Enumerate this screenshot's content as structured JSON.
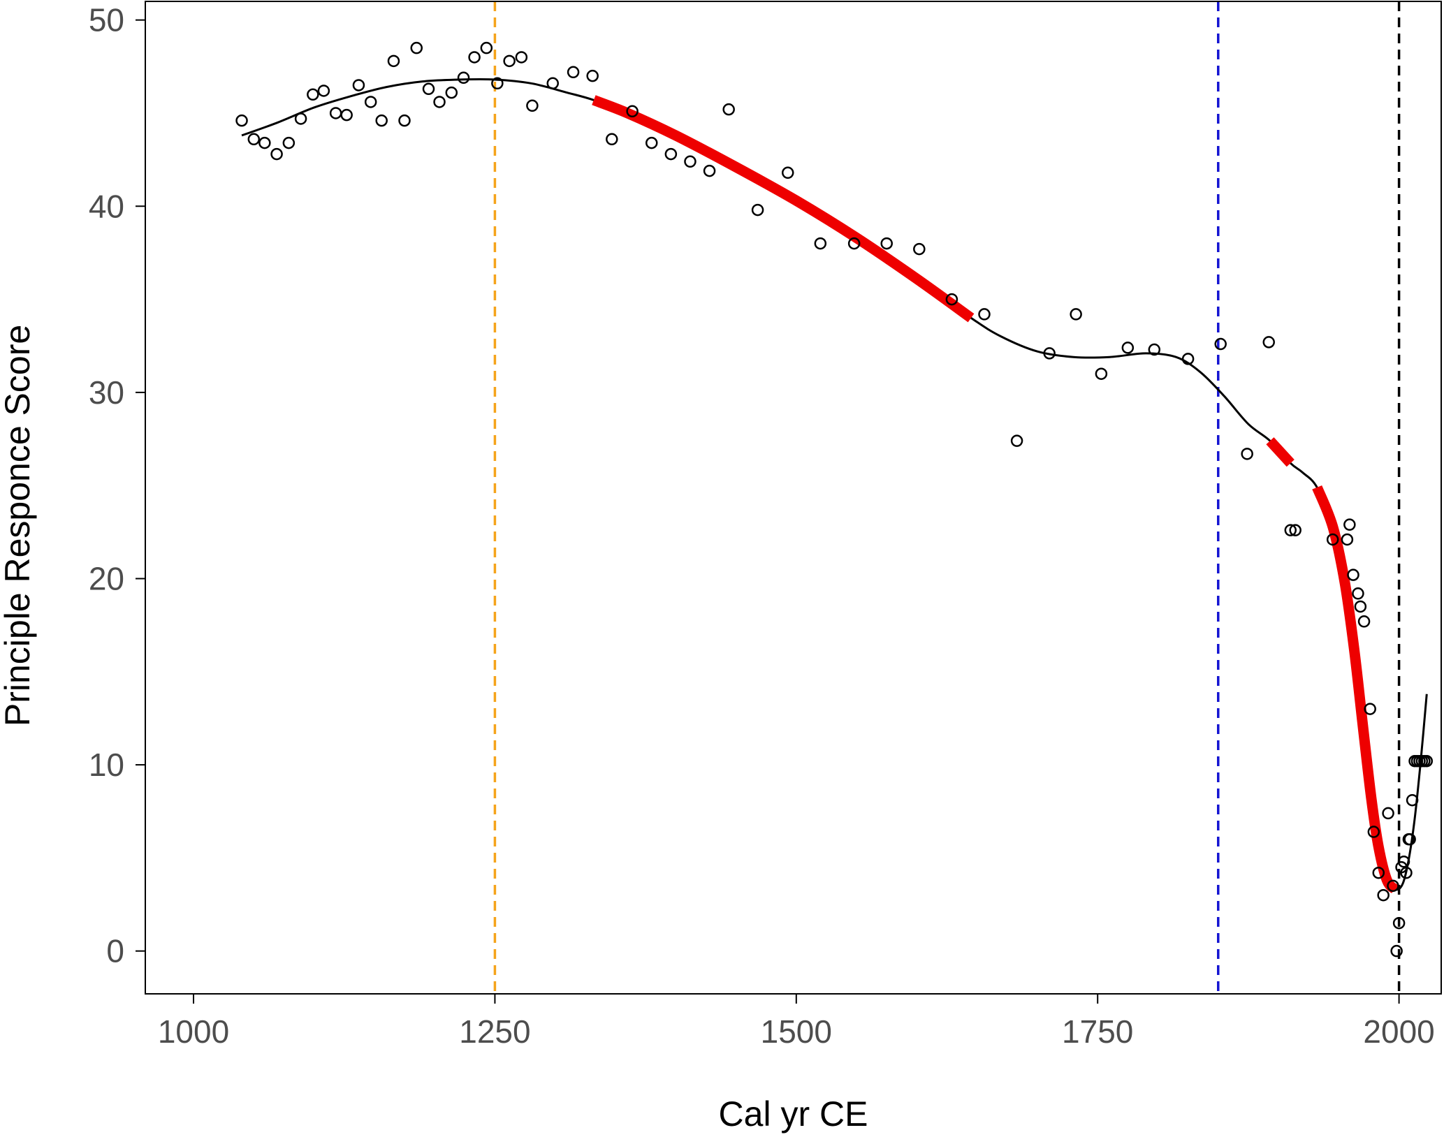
{
  "chart_data": {
    "type": "scatter",
    "title": "",
    "xlabel": "Cal yr CE",
    "ylabel": "Principle Responce Score",
    "xlim": [
      960,
      2035
    ],
    "ylim": [
      -2.3,
      51
    ],
    "x_ticks": [
      1000,
      1250,
      1500,
      1750,
      2000
    ],
    "y_ticks": [
      0,
      10,
      20,
      30,
      40,
      50
    ],
    "grid": false,
    "legend": "none",
    "colors": {
      "points": "#000000",
      "fit": "#000000",
      "significant": "#ee0000",
      "vline_1250": "#f5a41b",
      "vline_1850": "#1414d2",
      "vline_2000": "#000000"
    },
    "vlines": [
      1250,
      1850,
      2000
    ],
    "points": [
      [
        1040,
        44.6
      ],
      [
        1050,
        43.6
      ],
      [
        1059,
        43.4
      ],
      [
        1069,
        42.8
      ],
      [
        1079,
        43.4
      ],
      [
        1089,
        44.7
      ],
      [
        1099,
        46.0
      ],
      [
        1108,
        46.2
      ],
      [
        1118,
        45.0
      ],
      [
        1127,
        44.9
      ],
      [
        1137,
        46.5
      ],
      [
        1147,
        45.6
      ],
      [
        1156,
        44.6
      ],
      [
        1166,
        47.8
      ],
      [
        1175,
        44.6
      ],
      [
        1185,
        48.5
      ],
      [
        1195,
        46.3
      ],
      [
        1204,
        45.6
      ],
      [
        1214,
        46.1
      ],
      [
        1224,
        46.9
      ],
      [
        1233,
        48.0
      ],
      [
        1243,
        48.5
      ],
      [
        1252,
        46.6
      ],
      [
        1262,
        47.8
      ],
      [
        1272,
        48.0
      ],
      [
        1281,
        45.4
      ],
      [
        1298,
        46.6
      ],
      [
        1315,
        47.2
      ],
      [
        1331,
        47.0
      ],
      [
        1347,
        43.6
      ],
      [
        1364,
        45.1
      ],
      [
        1380,
        43.4
      ],
      [
        1396,
        42.8
      ],
      [
        1412,
        42.4
      ],
      [
        1428,
        41.9
      ],
      [
        1444,
        45.2
      ],
      [
        1468,
        39.8
      ],
      [
        1493,
        41.8
      ],
      [
        1520,
        38.0
      ],
      [
        1548,
        38.0
      ],
      [
        1575,
        38.0
      ],
      [
        1602,
        37.7
      ],
      [
        1629,
        35.0
      ],
      [
        1656,
        34.2
      ],
      [
        1683,
        27.4
      ],
      [
        1710,
        32.1
      ],
      [
        1732,
        34.2
      ],
      [
        1753,
        31.0
      ],
      [
        1775,
        32.4
      ],
      [
        1797,
        32.3
      ],
      [
        1825,
        31.8
      ],
      [
        1852,
        32.6
      ],
      [
        1874,
        26.7
      ],
      [
        1892,
        32.7
      ],
      [
        1910,
        22.6
      ],
      [
        1914,
        22.6
      ],
      [
        1945,
        22.1
      ],
      [
        1957,
        22.1
      ],
      [
        1959,
        22.9
      ],
      [
        1962,
        20.2
      ],
      [
        1966,
        19.2
      ],
      [
        1968,
        18.5
      ],
      [
        1971,
        17.7
      ],
      [
        1976,
        13.0
      ],
      [
        1979,
        6.4
      ],
      [
        1983,
        4.2
      ],
      [
        1987,
        3.0
      ],
      [
        1991,
        7.4
      ],
      [
        1995,
        3.5
      ],
      [
        1998,
        0.0
      ],
      [
        2000,
        1.5
      ],
      [
        2002,
        4.5
      ],
      [
        2004,
        4.8
      ],
      [
        2006,
        4.2
      ],
      [
        2008,
        6.0
      ],
      [
        2009,
        6.0
      ],
      [
        2011,
        8.1
      ],
      [
        2013,
        10.2
      ],
      [
        2015,
        10.2
      ],
      [
        2017,
        10.2
      ],
      [
        2019,
        10.2
      ],
      [
        2021,
        10.2
      ],
      [
        2023,
        10.2
      ]
    ],
    "fit_curve": [
      [
        1040,
        43.8
      ],
      [
        1070,
        44.5
      ],
      [
        1100,
        45.3
      ],
      [
        1130,
        45.9
      ],
      [
        1160,
        46.4
      ],
      [
        1190,
        46.7
      ],
      [
        1220,
        46.8
      ],
      [
        1250,
        46.8
      ],
      [
        1280,
        46.6
      ],
      [
        1310,
        46.1
      ],
      [
        1332,
        45.7
      ],
      [
        1360,
        45.0
      ],
      [
        1400,
        43.8
      ],
      [
        1450,
        42.1
      ],
      [
        1500,
        40.3
      ],
      [
        1550,
        38.3
      ],
      [
        1600,
        36.1
      ],
      [
        1645,
        34.0
      ],
      [
        1670,
        33.0
      ],
      [
        1700,
        32.2
      ],
      [
        1730,
        31.9
      ],
      [
        1760,
        31.9
      ],
      [
        1790,
        32.1
      ],
      [
        1815,
        31.9
      ],
      [
        1835,
        31.1
      ],
      [
        1855,
        29.8
      ],
      [
        1875,
        28.3
      ],
      [
        1893,
        27.4
      ],
      [
        1910,
        26.2
      ],
      [
        1920,
        25.7
      ],
      [
        1932,
        24.9
      ],
      [
        1945,
        22.8
      ],
      [
        1955,
        19.8
      ],
      [
        1963,
        16.1
      ],
      [
        1970,
        12.1
      ],
      [
        1977,
        8.2
      ],
      [
        1983,
        5.6
      ],
      [
        1990,
        3.8
      ],
      [
        1997,
        3.3
      ],
      [
        2003,
        3.6
      ],
      [
        2008,
        4.9
      ],
      [
        2013,
        7.1
      ],
      [
        2018,
        10.2
      ],
      [
        2023,
        13.8
      ]
    ],
    "significant_segments": [
      [
        1332,
        1645
      ],
      [
        1893,
        1910
      ],
      [
        1932,
        1997
      ]
    ]
  }
}
